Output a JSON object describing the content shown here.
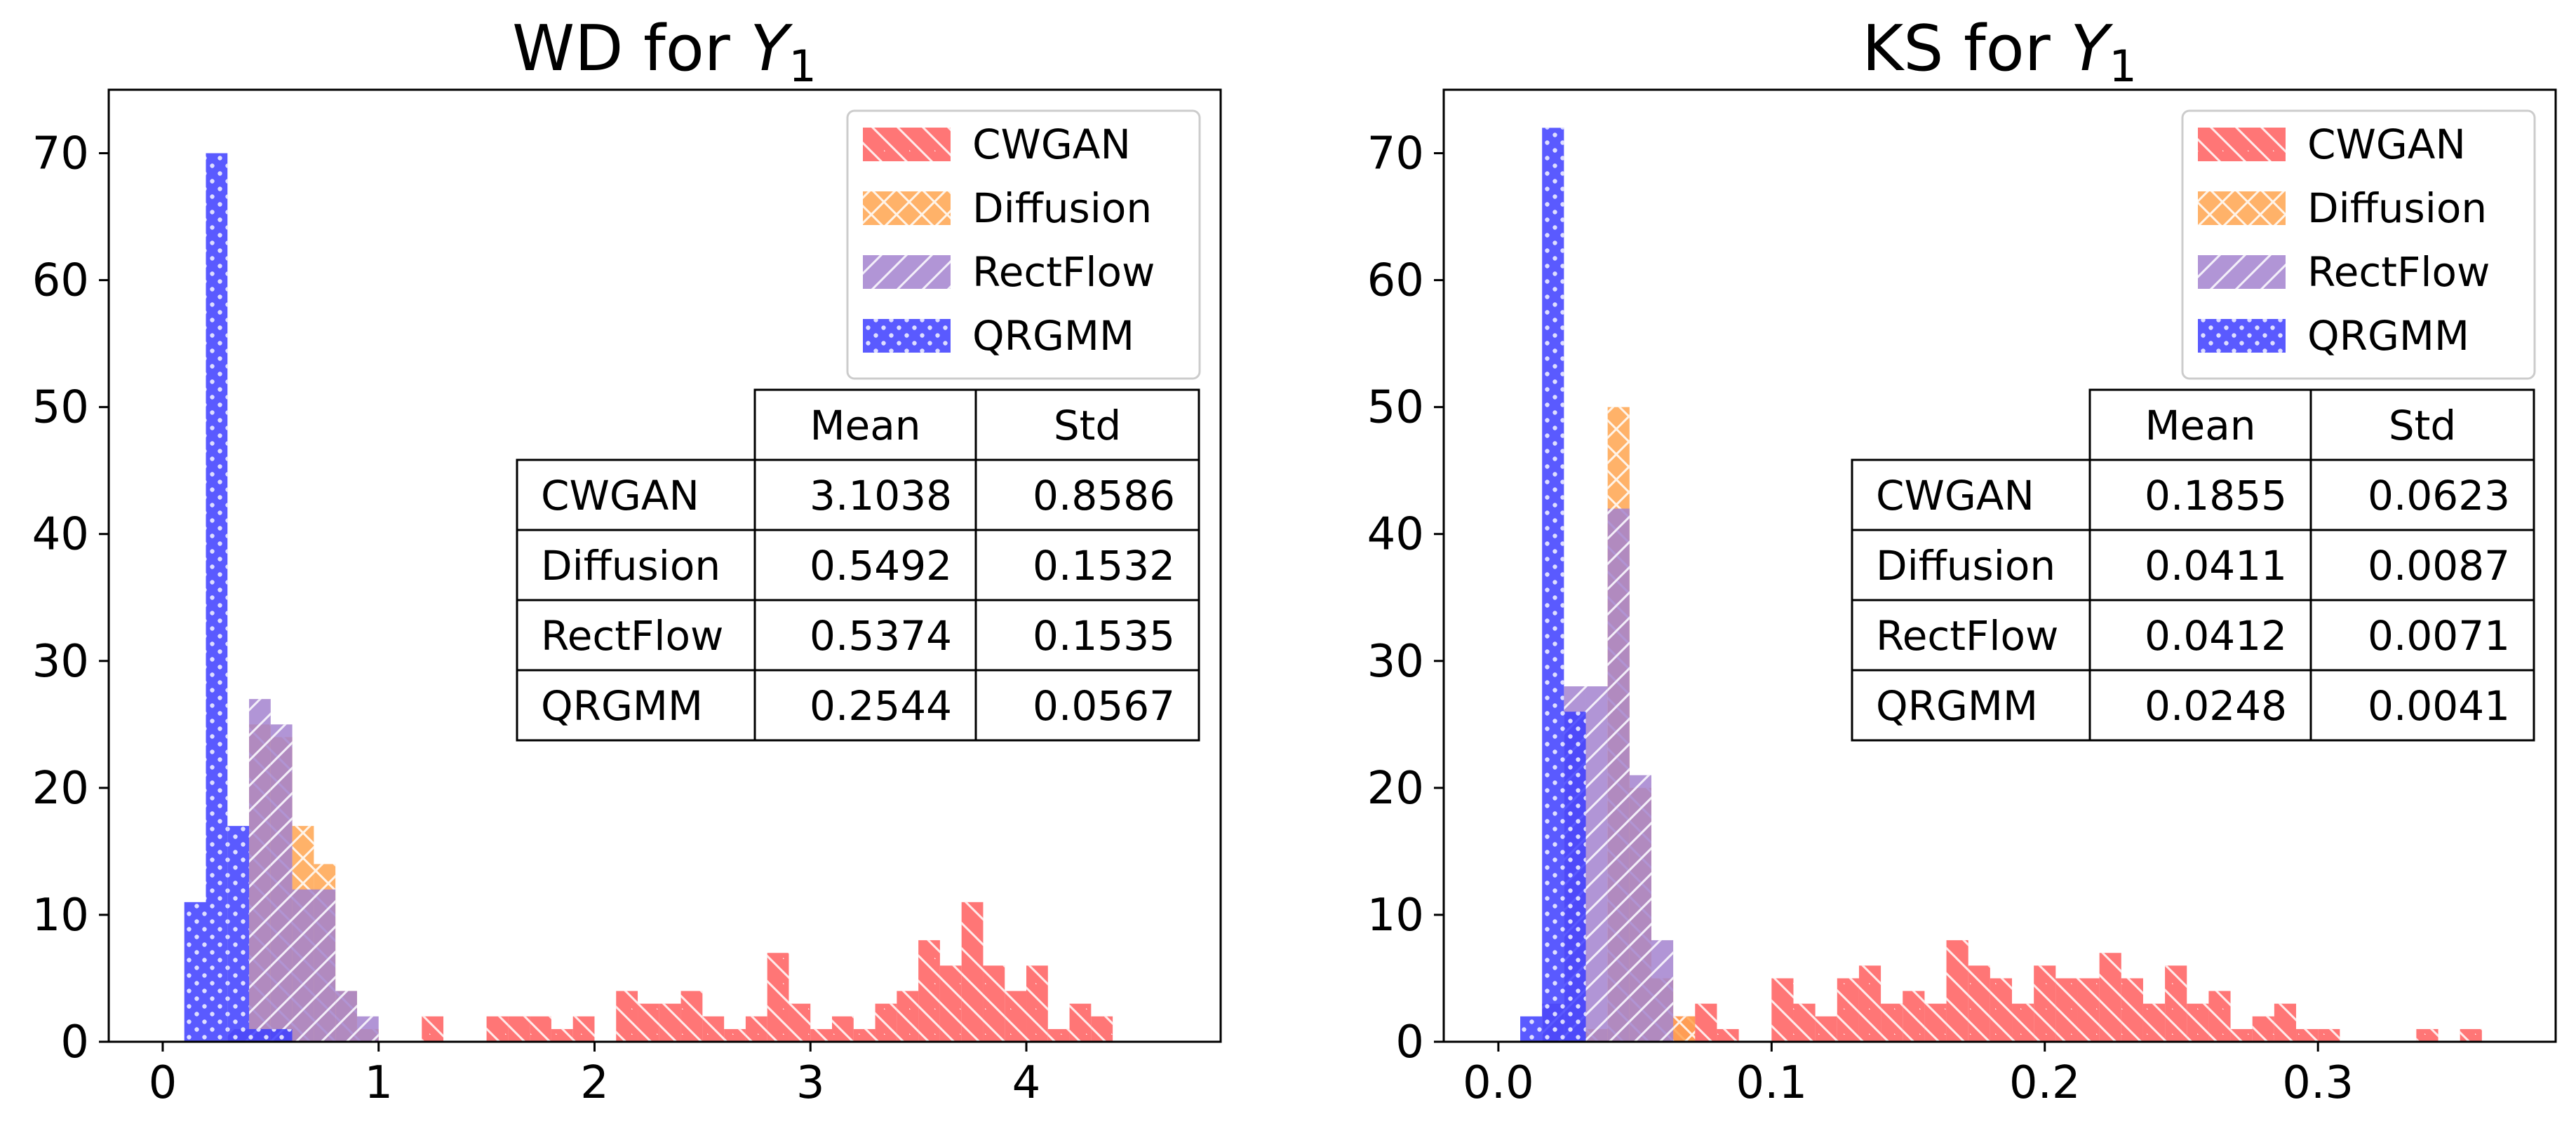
{
  "chart_data": [
    {
      "type": "bar",
      "title": "WD for ",
      "title_var": "Y",
      "title_sub": "1",
      "xlabel": "",
      "ylabel": "",
      "bin_width": 0.1,
      "xlim": [
        -0.25,
        4.9
      ],
      "ylim": [
        0,
        75
      ],
      "xticks": [
        0,
        1,
        2,
        3,
        4
      ],
      "xtick_labels": [
        "0",
        "1",
        "2",
        "3",
        "4"
      ],
      "yticks": [
        0,
        10,
        20,
        30,
        40,
        50,
        60,
        70
      ],
      "ytick_labels": [
        "0",
        "10",
        "20",
        "30",
        "40",
        "50",
        "60",
        "70"
      ],
      "series": [
        {
          "name": "CWGAN",
          "color": "#ff5e5e",
          "pattern": "backslash",
          "bins": [
            [
              1.2,
              2
            ],
            [
              1.5,
              2
            ],
            [
              1.6,
              2
            ],
            [
              1.7,
              2
            ],
            [
              1.8,
              1
            ],
            [
              1.9,
              2
            ],
            [
              2.1,
              4
            ],
            [
              2.2,
              3
            ],
            [
              2.3,
              3
            ],
            [
              2.4,
              4
            ],
            [
              2.5,
              2
            ],
            [
              2.6,
              1
            ],
            [
              2.7,
              2
            ],
            [
              2.8,
              7
            ],
            [
              2.9,
              3
            ],
            [
              3.0,
              1
            ],
            [
              3.1,
              2
            ],
            [
              3.2,
              1
            ],
            [
              3.3,
              3
            ],
            [
              3.4,
              4
            ],
            [
              3.5,
              8
            ],
            [
              3.6,
              6
            ],
            [
              3.7,
              11
            ],
            [
              3.8,
              6
            ],
            [
              3.9,
              4
            ],
            [
              4.0,
              6
            ],
            [
              4.1,
              1
            ],
            [
              4.2,
              3
            ],
            [
              4.3,
              2
            ]
          ]
        },
        {
          "name": "Diffusion",
          "color": "#ffa54f",
          "pattern": "cross",
          "bins": [
            [
              0.4,
              25
            ],
            [
              0.5,
              24
            ],
            [
              0.6,
              17
            ],
            [
              0.7,
              14
            ],
            [
              0.8,
              4
            ],
            [
              0.9,
              1
            ]
          ]
        },
        {
          "name": "RectFlow",
          "color": "#a383cf",
          "pattern": "slash",
          "bins": [
            [
              0.3,
              1
            ],
            [
              0.4,
              27
            ],
            [
              0.5,
              25
            ],
            [
              0.6,
              12
            ],
            [
              0.7,
              12
            ],
            [
              0.8,
              4
            ],
            [
              0.9,
              2
            ]
          ]
        },
        {
          "name": "QRGMM",
          "color": "#3d3dff",
          "pattern": "dots",
          "bins": [
            [
              0.1,
              11
            ],
            [
              0.2,
              70
            ],
            [
              0.3,
              17
            ],
            [
              0.4,
              1
            ],
            [
              0.5,
              1
            ]
          ]
        }
      ],
      "legend": [
        "CWGAN",
        "Diffusion",
        "RectFlow",
        "QRGMM"
      ],
      "legend_position": "top-right",
      "table": {
        "headers": [
          "",
          "Mean",
          "Std"
        ],
        "rows": [
          [
            "CWGAN",
            "3.1038",
            "0.8586"
          ],
          [
            "Diffusion",
            "0.5492",
            "0.1532"
          ],
          [
            "RectFlow",
            "0.5374",
            "0.1535"
          ],
          [
            "QRGMM",
            "0.2544",
            "0.0567"
          ]
        ]
      }
    },
    {
      "type": "bar",
      "title": "KS for ",
      "title_var": "Y",
      "title_sub": "1",
      "xlabel": "",
      "ylabel": "",
      "bin_width": 0.008,
      "xlim": [
        -0.02,
        0.387
      ],
      "ylim": [
        0,
        75
      ],
      "xticks": [
        0,
        0.1,
        0.2,
        0.3
      ],
      "xtick_labels": [
        "0.0",
        "0.1",
        "0.2",
        "0.3"
      ],
      "yticks": [
        0,
        10,
        20,
        30,
        40,
        50,
        60,
        70
      ],
      "ytick_labels": [
        "0",
        "10",
        "20",
        "30",
        "40",
        "50",
        "60",
        "70"
      ],
      "series": [
        {
          "name": "CWGAN",
          "color": "#ff5e5e",
          "pattern": "backslash",
          "bins": [
            [
              0.064,
              2
            ],
            [
              0.072,
              3
            ],
            [
              0.08,
              1
            ],
            [
              0.1,
              5
            ],
            [
              0.108,
              3
            ],
            [
              0.116,
              2
            ],
            [
              0.124,
              5
            ],
            [
              0.132,
              6
            ],
            [
              0.14,
              3
            ],
            [
              0.148,
              4
            ],
            [
              0.156,
              3
            ],
            [
              0.164,
              8
            ],
            [
              0.172,
              6
            ],
            [
              0.18,
              5
            ],
            [
              0.188,
              3
            ],
            [
              0.196,
              6
            ],
            [
              0.204,
              5
            ],
            [
              0.212,
              5
            ],
            [
              0.22,
              7
            ],
            [
              0.228,
              5
            ],
            [
              0.236,
              3
            ],
            [
              0.244,
              6
            ],
            [
              0.252,
              3
            ],
            [
              0.26,
              4
            ],
            [
              0.268,
              1
            ],
            [
              0.276,
              2
            ],
            [
              0.284,
              3
            ],
            [
              0.292,
              1
            ],
            [
              0.3,
              1
            ],
            [
              0.336,
              1
            ],
            [
              0.352,
              1
            ]
          ]
        },
        {
          "name": "Diffusion",
          "color": "#ffa54f",
          "pattern": "cross",
          "bins": [
            [
              0.032,
              1
            ],
            [
              0.04,
              50
            ],
            [
              0.048,
              20
            ],
            [
              0.056,
              5
            ],
            [
              0.064,
              2
            ]
          ]
        },
        {
          "name": "RectFlow",
          "color": "#a383cf",
          "pattern": "slash",
          "bins": [
            [
              0.016,
              3
            ],
            [
              0.024,
              28
            ],
            [
              0.032,
              28
            ],
            [
              0.04,
              42
            ],
            [
              0.048,
              21
            ],
            [
              0.056,
              8
            ]
          ]
        },
        {
          "name": "QRGMM",
          "color": "#3d3dff",
          "pattern": "dots",
          "bins": [
            [
              0.008,
              2
            ],
            [
              0.016,
              72
            ],
            [
              0.024,
              26
            ]
          ]
        }
      ],
      "legend": [
        "CWGAN",
        "Diffusion",
        "RectFlow",
        "QRGMM"
      ],
      "legend_position": "top-right",
      "table": {
        "headers": [
          "",
          "Mean",
          "Std"
        ],
        "rows": [
          [
            "CWGAN",
            "0.1855",
            "0.0623"
          ],
          [
            "Diffusion",
            "0.0411",
            "0.0087"
          ],
          [
            "RectFlow",
            "0.0412",
            "0.0071"
          ],
          [
            "QRGMM",
            "0.0248",
            "0.0041"
          ]
        ]
      }
    }
  ]
}
